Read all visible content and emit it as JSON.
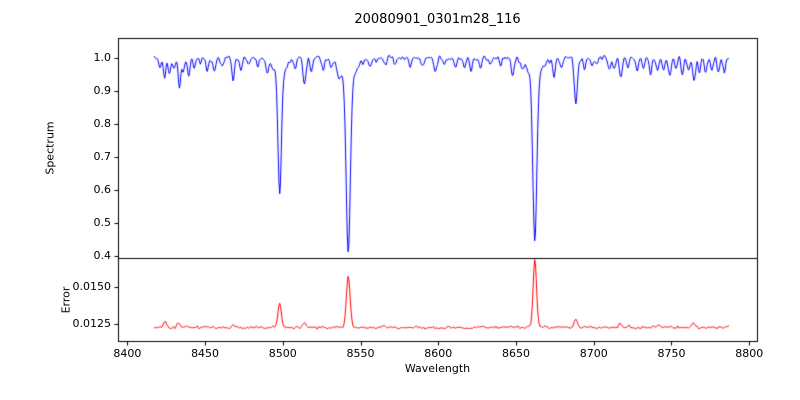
{
  "chart_data": {
    "type": "line",
    "title": "20080901_0301m28_116",
    "xlabel": "Wavelength",
    "xlim": [
      8394,
      8805
    ],
    "xticks": [
      8400,
      8450,
      8500,
      8550,
      8600,
      8650,
      8700,
      8750,
      8800
    ],
    "x_start": 8417,
    "x_end": 8787,
    "step": 0.5,
    "seed": 20080901,
    "panels": [
      {
        "name": "spectrum",
        "ylabel": "Spectrum",
        "color": "#0000ff",
        "ylim": [
          0.393,
          1.06
        ],
        "yticks": [
          [
            1.0,
            "1.0"
          ],
          [
            0.9,
            "0.9"
          ],
          [
            0.8,
            "0.8"
          ],
          [
            0.7,
            "0.7"
          ],
          [
            0.6,
            "0.6"
          ],
          [
            0.5,
            "0.5"
          ],
          [
            0.4,
            "0.4"
          ]
        ],
        "continuum": 1.0,
        "noise_sigma": 0.0062,
        "absorption_lines": [
          [
            8421,
            0.03,
            0.8
          ],
          [
            8424,
            0.06,
            0.8
          ],
          [
            8427,
            0.05,
            0.8
          ],
          [
            8430,
            0.03,
            0.8
          ],
          [
            8433.5,
            0.08,
            0.9
          ],
          [
            8436,
            0.04,
            0.8
          ],
          [
            8439.5,
            0.06,
            0.8
          ],
          [
            8443,
            0.03,
            0.8
          ],
          [
            8447,
            0.02,
            0.8
          ],
          [
            8451.5,
            0.04,
            0.8
          ],
          [
            8456,
            0.05,
            0.9
          ],
          [
            8461,
            0.03,
            0.8
          ],
          [
            8468,
            0.07,
            0.9
          ],
          [
            8473,
            0.04,
            0.8
          ],
          [
            8478,
            0.02,
            0.8
          ],
          [
            8484,
            0.03,
            0.8
          ],
          [
            8490,
            0.04,
            0.8
          ],
          [
            8498.0,
            0.36,
            1.1
          ],
          [
            8498.0,
            0.05,
            4.0
          ],
          [
            8508,
            0.03,
            0.8
          ],
          [
            8514,
            0.08,
            1.0
          ],
          [
            8518.5,
            0.04,
            0.8
          ],
          [
            8526,
            0.03,
            0.8
          ],
          [
            8531,
            0.02,
            0.8
          ],
          [
            8536,
            0.03,
            0.8
          ],
          [
            8542.1,
            0.52,
            1.3
          ],
          [
            8542.1,
            0.07,
            5.0
          ],
          [
            8556,
            0.03,
            0.8
          ],
          [
            8560,
            0.02,
            0.8
          ],
          [
            8566,
            0.02,
            0.8
          ],
          [
            8572,
            0.02,
            0.8
          ],
          [
            8582,
            0.03,
            0.8
          ],
          [
            8590,
            0.02,
            0.8
          ],
          [
            8598,
            0.04,
            0.9
          ],
          [
            8604,
            0.02,
            0.8
          ],
          [
            8611,
            0.03,
            0.8
          ],
          [
            8617,
            0.02,
            0.8
          ],
          [
            8621,
            0.04,
            0.8
          ],
          [
            8627,
            0.03,
            0.8
          ],
          [
            8634,
            0.02,
            0.8
          ],
          [
            8640,
            0.02,
            0.8
          ],
          [
            8648,
            0.05,
            0.9
          ],
          [
            8654,
            0.03,
            0.8
          ],
          [
            8662.1,
            0.5,
            1.25
          ],
          [
            8662.1,
            0.06,
            4.5
          ],
          [
            8674.5,
            0.05,
            0.9
          ],
          [
            8679,
            0.03,
            0.8
          ],
          [
            8688.5,
            0.14,
            1.0
          ],
          [
            8694,
            0.04,
            0.8
          ],
          [
            8699,
            0.03,
            0.8
          ],
          [
            8702,
            0.02,
            0.8
          ],
          [
            8710,
            0.04,
            0.9
          ],
          [
            8713,
            0.03,
            0.8
          ],
          [
            8717.5,
            0.06,
            0.9
          ],
          [
            8722,
            0.03,
            0.8
          ],
          [
            8728,
            0.04,
            0.8
          ],
          [
            8732,
            0.03,
            0.8
          ],
          [
            8736.5,
            0.05,
            0.8
          ],
          [
            8741,
            0.04,
            0.8
          ],
          [
            8745,
            0.03,
            0.8
          ],
          [
            8749,
            0.05,
            0.9
          ],
          [
            8753,
            0.03,
            0.8
          ],
          [
            8757,
            0.05,
            0.8
          ],
          [
            8761,
            0.04,
            0.8
          ],
          [
            8764.5,
            0.07,
            0.9
          ],
          [
            8768,
            0.04,
            0.8
          ],
          [
            8772,
            0.05,
            0.8
          ],
          [
            8776,
            0.04,
            0.8
          ],
          [
            8780,
            0.05,
            0.8
          ],
          [
            8784,
            0.04,
            0.8
          ]
        ]
      },
      {
        "name": "error",
        "ylabel": "Error",
        "color": "#ff0000",
        "ylim": [
          0.0114,
          0.0169
        ],
        "yticks": [
          [
            0.015,
            "0.0150"
          ],
          [
            0.0125,
            "0.0125"
          ]
        ],
        "baseline": 0.0123,
        "noise_sigma": 7e-05,
        "peaks": [
          [
            8424,
            0.0004,
            1.0
          ],
          [
            8433,
            0.0003,
            1.0
          ],
          [
            8468,
            0.0002,
            1.0
          ],
          [
            8498.0,
            0.0016,
            1.1
          ],
          [
            8514,
            0.0003,
            1.0
          ],
          [
            8542.1,
            0.0034,
            1.2
          ],
          [
            8662.1,
            0.0045,
            1.1
          ],
          [
            8688.5,
            0.0006,
            1.0
          ],
          [
            8717,
            0.0003,
            1.0
          ],
          [
            8742,
            0.0002,
            1.0
          ],
          [
            8764,
            0.0003,
            1.0
          ]
        ]
      }
    ]
  }
}
